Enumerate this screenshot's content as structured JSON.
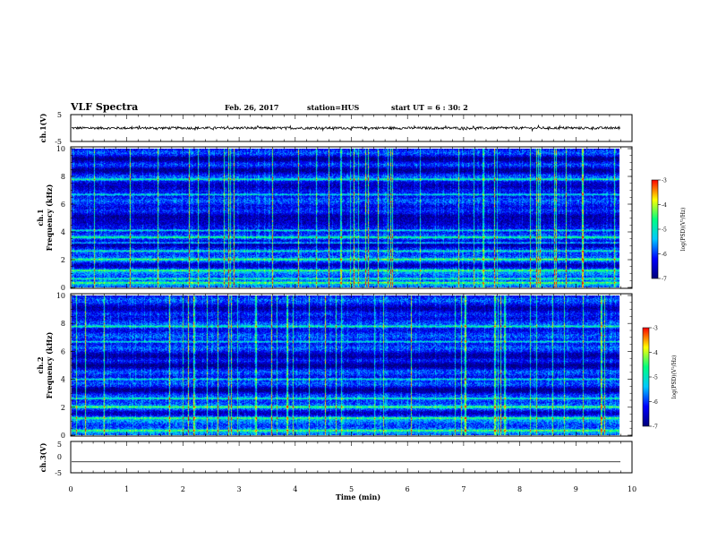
{
  "header": {
    "title": "VLF Spectra",
    "date": "Feb. 26, 2017",
    "station": "station=HUS",
    "start_ut": "start  UT =   6 : 30: 2"
  },
  "chart_data": [
    {
      "type": "line",
      "panel": "ch1-waveform",
      "ylabel": "ch.1(V)",
      "ylim": [
        -5,
        5
      ],
      "yticks": [
        "5",
        "-5"
      ],
      "xlim": [
        0,
        10
      ],
      "baseline": 0.0,
      "noise_amplitude": 0.45
    },
    {
      "type": "heatmap",
      "panel": "ch1-spectrogram",
      "ylabel_channel": "ch.1",
      "ylabel": "Frequency (kHz)",
      "ylim": [
        0,
        10
      ],
      "yticks": [
        "0",
        "2",
        "4",
        "6",
        "8",
        "10"
      ],
      "xlim": [
        0,
        9.8
      ],
      "colorbar": {
        "label": "log(PSD)(V²/Hz)",
        "range": [
          -7,
          -3
        ],
        "ticks": [
          "-3",
          "-4",
          "-5",
          "-6",
          "-7"
        ]
      },
      "bright_bands_khz": [
        0.3,
        0.6,
        1.2,
        2.0,
        2.6,
        3.2,
        3.6,
        4.1,
        6.7,
        7.8
      ],
      "dark_bands_khz": [
        1.6,
        3.0,
        4.6,
        5.2,
        7.2,
        8.5,
        9.3
      ]
    },
    {
      "type": "heatmap",
      "panel": "ch2-spectrogram",
      "ylabel_channel": "ch.2",
      "ylabel": "Frequency (kHz)",
      "ylim": [
        0,
        10
      ],
      "yticks": [
        "0",
        "2",
        "4",
        "6",
        "8",
        "10"
      ],
      "xlim": [
        0,
        9.8
      ],
      "colorbar": {
        "label": "log(PSD)(V²/Hz)",
        "range": [
          -7,
          -3
        ],
        "ticks": [
          "-3",
          "-4",
          "-5",
          "-6",
          "-7"
        ]
      },
      "bright_bands_khz": [
        0.3,
        1.2,
        2.0,
        2.6,
        4.0,
        6.7,
        7.8
      ],
      "dark_bands_khz": [
        1.6,
        3.2,
        5.0,
        5.6,
        9.0
      ]
    },
    {
      "type": "line",
      "panel": "ch3-waveform",
      "ylabel": "ch.3(V)",
      "ylim": [
        -5,
        5
      ],
      "yticks": [
        "5",
        "0",
        "-5"
      ],
      "xlim": [
        0,
        10
      ],
      "baseline": -1.5,
      "noise_amplitude": 0
    }
  ],
  "time_axis": {
    "label": "Time (min)",
    "ticks": [
      "0",
      "1",
      "2",
      "3",
      "4",
      "5",
      "6",
      "7",
      "8",
      "9",
      "10"
    ]
  },
  "colors": {
    "colormap": [
      "#00007a",
      "#0000ff",
      "#00c8ff",
      "#00ff80",
      "#ffff00",
      "#ff0000"
    ],
    "waveform": "#000000",
    "frame": "#000000"
  }
}
